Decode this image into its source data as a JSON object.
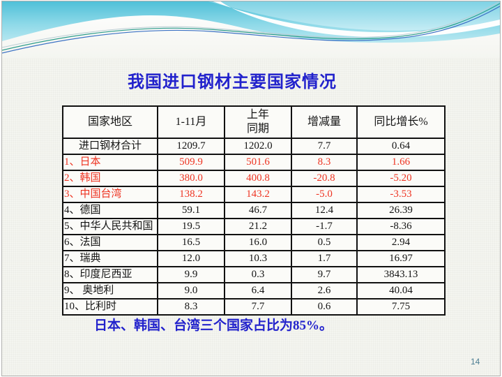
{
  "slide": {
    "title": "我国进口钢材主要国家情况",
    "page_number": "14",
    "footer_note": {
      "prefix": "日本、韩国、台湾三个国家占比为",
      "percentage": "85%",
      "suffix": "。"
    }
  },
  "table": {
    "headers": [
      "国家地区",
      "1-11月",
      "上年\n同期",
      "增减量",
      "同比增长%"
    ],
    "rows": [
      {
        "label": "进口钢材合计",
        "values": [
          "1209.7",
          "1202.0",
          "7.7",
          "0.64"
        ],
        "highlight": false,
        "center_label": true
      },
      {
        "label": "1、日本",
        "values": [
          "509.9",
          "501.6",
          "8.3",
          "1.66"
        ],
        "highlight": true,
        "center_label": false
      },
      {
        "label": "2、韩国",
        "values": [
          "380.0",
          "400.8",
          "-20.8",
          "-5.20"
        ],
        "highlight": true,
        "center_label": false
      },
      {
        "label": "3、中国台湾",
        "values": [
          "138.2",
          "143.2",
          "-5.0",
          "-3.53"
        ],
        "highlight": true,
        "center_label": false
      },
      {
        "label": "4、德国",
        "values": [
          "59.1",
          "46.7",
          "12.4",
          "26.39"
        ],
        "highlight": false,
        "center_label": false
      },
      {
        "label": "5、中华人民共和国",
        "values": [
          "19.5",
          "21.2",
          "-1.7",
          "-8.36"
        ],
        "highlight": false,
        "center_label": false
      },
      {
        "label": "6、法国",
        "values": [
          "16.5",
          "16.0",
          "0.5",
          "2.94"
        ],
        "highlight": false,
        "center_label": false
      },
      {
        "label": "7、瑞典",
        "values": [
          "12.0",
          "10.3",
          "1.7",
          "16.97"
        ],
        "highlight": false,
        "center_label": false
      },
      {
        "label": "8、印度尼西亚",
        "values": [
          "9.9",
          "0.3",
          "9.7",
          "3843.13"
        ],
        "highlight": false,
        "center_label": false
      },
      {
        "label": "9、 奥地利",
        "values": [
          "9.0",
          "6.4",
          "2.6",
          "40.04"
        ],
        "highlight": false,
        "center_label": false
      },
      {
        "label": "10、比利时",
        "values": [
          "8.3",
          "7.7",
          "0.6",
          "7.75"
        ],
        "highlight": false,
        "center_label": false
      }
    ]
  },
  "colors": {
    "title_blue": "#2222cc",
    "highlight_red": "#ee3422",
    "table_border": "#111111",
    "page_number": "#4d7f93",
    "wave_cyan_dark": "#4fc0d8",
    "wave_cyan_light": "#aee2ee"
  }
}
